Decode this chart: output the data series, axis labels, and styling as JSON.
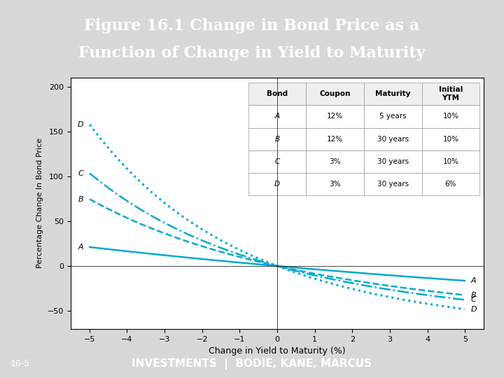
{
  "title_line1": "Figure 16.1 Change in Bond Price as a",
  "title_line2": "Function of Change in Yield to Maturity",
  "title_bg_color": "#1B2A4A",
  "title_text_color": "#FFFFFF",
  "xlabel": "Change in Yield to Maturity (%)",
  "ylabel": "Percentage Change In Bond Price",
  "xlim": [
    -5.5,
    5.5
  ],
  "ylim": [
    -70,
    210
  ],
  "yticks": [
    -50,
    0,
    50,
    100,
    150,
    200
  ],
  "xticks": [
    -5,
    -4,
    -3,
    -2,
    -1,
    0,
    1,
    2,
    3,
    4,
    5
  ],
  "plot_bg_color": "#FFFFFF",
  "line_color": "#00AACC",
  "footer_bg_color": "#1B2A4A",
  "footer_text": "INVESTMENTS  |  BODIE, KANE, MARCUS",
  "footer_label": "16-5",
  "bonds": [
    {
      "label": "A",
      "coupon": 0.12,
      "maturity": 5,
      "ytm": 0.1
    },
    {
      "label": "B",
      "coupon": 0.12,
      "maturity": 30,
      "ytm": 0.1
    },
    {
      "label": "C",
      "coupon": 0.03,
      "maturity": 30,
      "ytm": 0.1
    },
    {
      "label": "D",
      "coupon": 0.03,
      "maturity": 30,
      "ytm": 0.06
    }
  ],
  "line_styles": [
    {
      "linestyle": "-",
      "linewidth": 1.8
    },
    {
      "linestyle": "--",
      "linewidth": 1.8
    },
    {
      "linestyle": "-.",
      "linewidth": 1.8
    },
    {
      "linestyle": ":",
      "linewidth": 2.2
    }
  ],
  "table_headers": [
    "Bond",
    "Coupon",
    "Maturity",
    "Initial\nYTM"
  ],
  "table_rows": [
    [
      "A",
      "12%",
      "5 years",
      "10%"
    ],
    [
      "B",
      "12%",
      "30 years",
      "10%"
    ],
    [
      "C",
      "3%",
      "30 years",
      "10%"
    ],
    [
      "D",
      "3%",
      "30 years",
      "6%"
    ]
  ]
}
